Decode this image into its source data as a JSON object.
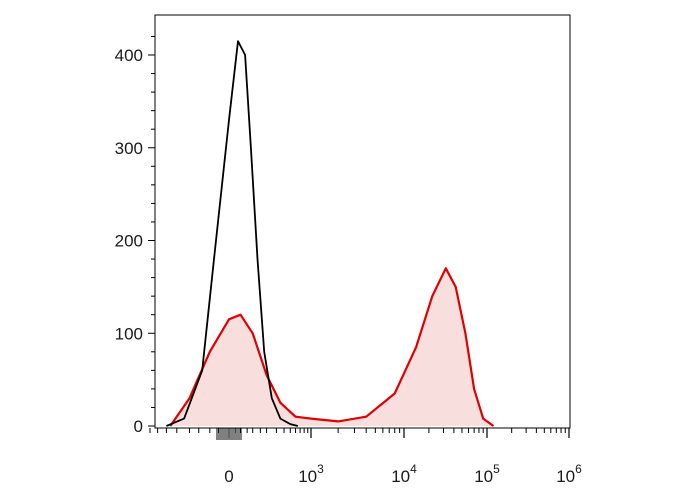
{
  "chart_data": {
    "type": "area",
    "title": "",
    "xlabel": "",
    "ylabel": "",
    "x_scale": "biexponential",
    "x_tick_labels": [
      {
        "value": 0,
        "base": "0",
        "exp": ""
      },
      {
        "value": 1000,
        "base": "10",
        "exp": "3"
      },
      {
        "value": 10000,
        "base": "10",
        "exp": "4"
      },
      {
        "value": 100000,
        "base": "10",
        "exp": "5"
      },
      {
        "value": 1000000,
        "base": "10",
        "exp": "6"
      }
    ],
    "ylim": [
      0,
      430
    ],
    "y_ticks": [
      0,
      100,
      200,
      300,
      400
    ],
    "y_tick_labels": [
      "0",
      "100",
      "200",
      "300",
      "400"
    ],
    "grid": false,
    "legend": "none",
    "series": [
      {
        "color": "#000000",
        "fill": "none",
        "x": [
          -200,
          -120,
          -60,
          -30,
          0,
          30,
          60,
          90,
          130,
          180,
          250,
          350,
          500,
          650
        ],
        "values": [
          0,
          8,
          60,
          180,
          330,
          415,
          400,
          300,
          180,
          80,
          30,
          8,
          2,
          0
        ]
      },
      {
        "color": "#e00000",
        "fill": "#f9dede",
        "x": [
          -180,
          -100,
          -40,
          0,
          40,
          100,
          200,
          350,
          600,
          1000,
          2000,
          4000,
          8000,
          14000,
          22000,
          32000,
          42000,
          55000,
          70000,
          90000,
          120000
        ],
        "values": [
          0,
          30,
          80,
          115,
          120,
          100,
          55,
          25,
          10,
          8,
          5,
          10,
          35,
          85,
          140,
          170,
          150,
          100,
          40,
          8,
          0
        ]
      }
    ]
  }
}
